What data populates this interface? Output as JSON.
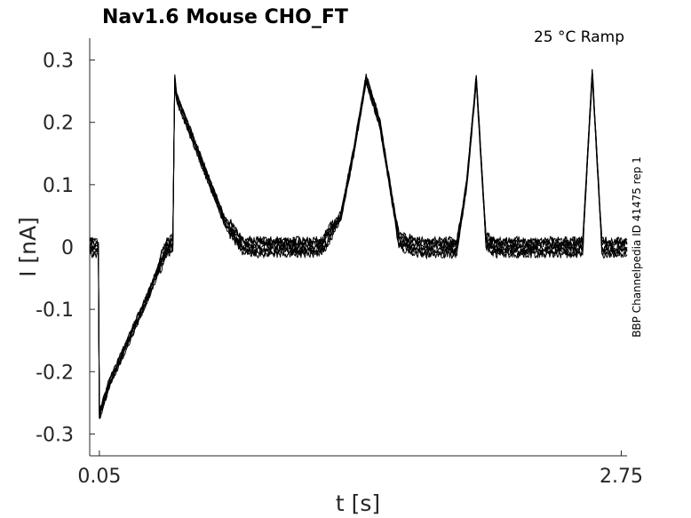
{
  "chart_data": {
    "type": "line",
    "title": "Nav1.6  Mouse  CHO_FT",
    "subtitle": "25 °C  Ramp",
    "side_label": "BBP Channelpedia ID 41475 rep 1",
    "xlabel": "t [s]",
    "ylabel": "I [nA]",
    "xlim": [
      0.0,
      2.78
    ],
    "ylim": [
      -0.335,
      0.335
    ],
    "x_ticks": [
      0.05,
      2.75
    ],
    "x_tick_labels": [
      "0.05",
      "2.75"
    ],
    "y_ticks": [
      0.3,
      0.2,
      0.1,
      0,
      -0.1,
      -0.2,
      -0.3
    ],
    "y_tick_labels": [
      "0.3",
      "0.2",
      "0.1",
      "0",
      "-0.1",
      "-0.2",
      "-0.3"
    ],
    "grid": false,
    "series": [
      {
        "x": [
          0.0,
          0.04,
          0.045,
          0.05,
          0.06,
          0.1,
          0.2,
          0.3,
          0.4,
          0.43,
          0.44,
          0.45,
          0.5,
          0.6,
          0.7,
          0.8,
          0.85,
          0.9,
          1.0,
          1.1,
          1.2,
          1.3,
          1.37,
          1.43,
          1.5,
          1.6,
          1.7,
          1.8,
          1.9,
          1.95,
          2.0,
          2.05,
          2.1,
          2.2,
          2.3,
          2.4,
          2.5,
          2.55,
          2.6,
          2.65,
          2.7,
          2.75,
          2.78
        ],
        "y": [
          0.0,
          0.0,
          -0.005,
          -0.27,
          -0.26,
          -0.22,
          -0.15,
          -0.08,
          0.0,
          0.005,
          0.27,
          0.24,
          0.2,
          0.12,
          0.04,
          0.0,
          0.0,
          0.0,
          0.0,
          0.0,
          0.0,
          0.05,
          0.16,
          0.27,
          0.2,
          0.01,
          0.0,
          0.0,
          0.0,
          0.1,
          0.27,
          0.01,
          0.0,
          0.0,
          0.0,
          0.0,
          0.0,
          0.0,
          0.28,
          0.0,
          0.0,
          0.0,
          0.0
        ]
      }
    ]
  }
}
